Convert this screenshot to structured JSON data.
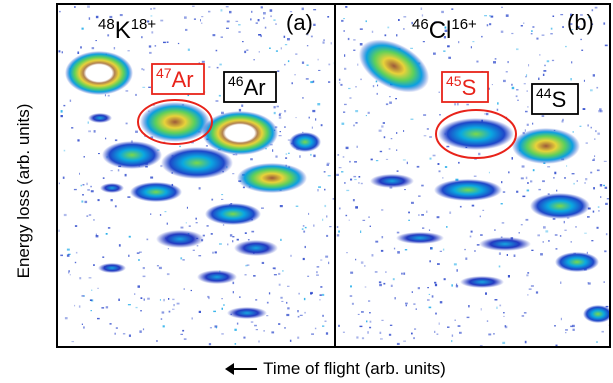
{
  "chart_data": {
    "type": "heatmap",
    "ylabel": "Energy loss (arb. units)",
    "xlabel": "Time of flight (arb. units)",
    "colormap": [
      "#ffffff",
      "#1e3cc8",
      "#00a0e6",
      "#50d250",
      "#ffe61e",
      "#a05a3c"
    ],
    "panels": [
      {
        "id": "(a)",
        "top_label": {
          "mass": "48",
          "element": "K",
          "charge": "18+"
        },
        "labels": [
          {
            "mass": "47",
            "element": "Ar",
            "color": "#e8231a",
            "highlighted": true
          },
          {
            "mass": "46",
            "element": "Ar",
            "color": "#000000",
            "highlighted": false
          }
        ]
      },
      {
        "id": "(b)",
        "top_label": {
          "mass": "46",
          "element": "Cl",
          "charge": "16+"
        },
        "labels": [
          {
            "mass": "45",
            "element": "S",
            "color": "#e8231a",
            "highlighted": true
          },
          {
            "mass": "44",
            "element": "S",
            "color": "#000000",
            "highlighted": false
          }
        ]
      }
    ]
  }
}
